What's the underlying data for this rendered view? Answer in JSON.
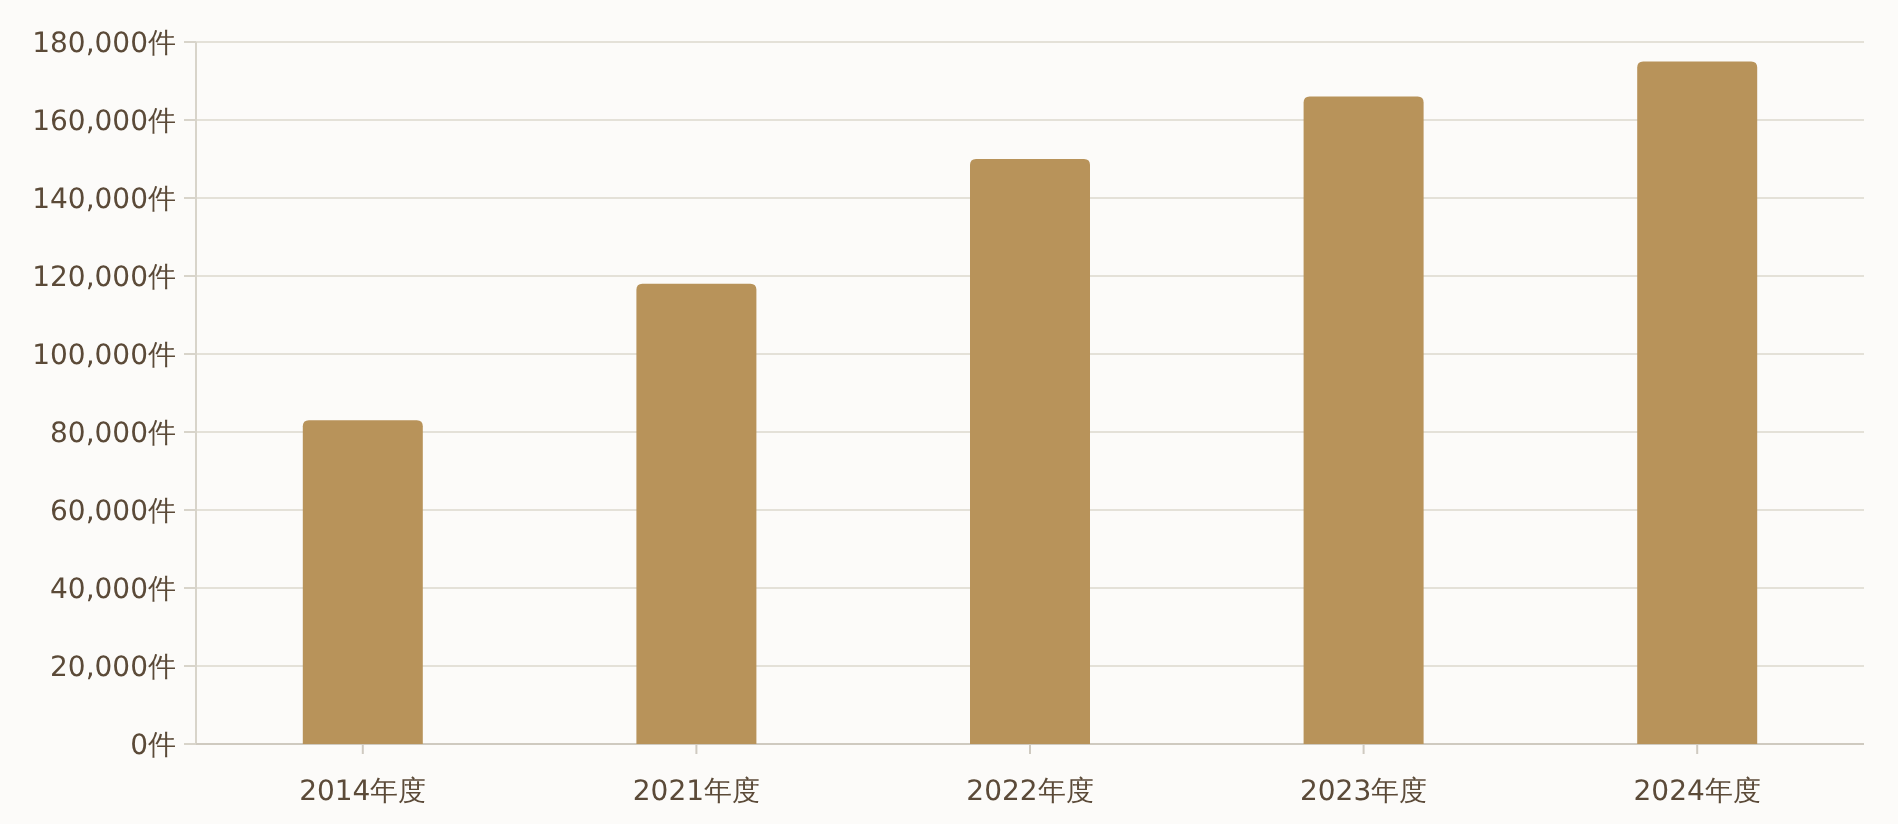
{
  "chart_data": {
    "type": "bar",
    "categories": [
      "2014年度",
      "2021年度",
      "2022年度",
      "2023年度",
      "2024年度"
    ],
    "values": [
      83000,
      118000,
      150000,
      166000,
      175000
    ],
    "color": "#b8935a",
    "ylim": [
      0,
      180000
    ],
    "yticks": [
      {
        "value": 0,
        "label": "0件"
      },
      {
        "value": 20000,
        "label": "20,000件"
      },
      {
        "value": 40000,
        "label": "40,000件"
      },
      {
        "value": 60000,
        "label": "60,000件"
      },
      {
        "value": 80000,
        "label": "80,000件"
      },
      {
        "value": 100000,
        "label": "100,000件"
      },
      {
        "value": 120000,
        "label": "120,000件"
      },
      {
        "value": 140000,
        "label": "140,000件"
      },
      {
        "value": 160000,
        "label": "160,000件"
      },
      {
        "value": 180000,
        "label": "180,000件"
      }
    ],
    "grid": "y"
  }
}
